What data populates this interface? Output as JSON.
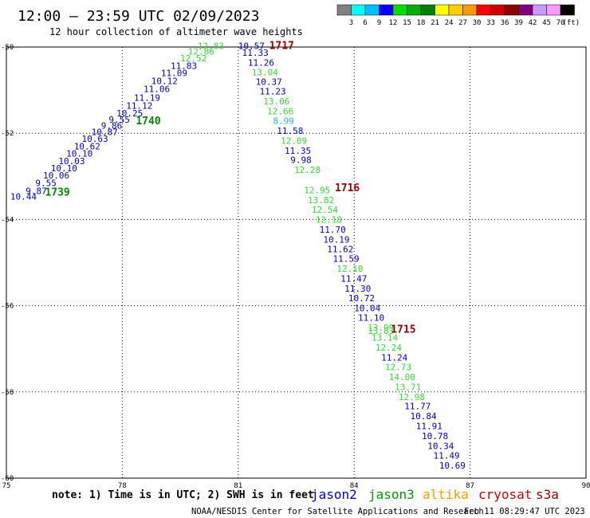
{
  "header": {
    "title": "12:00 — 23:59 UTC 02/09/2023",
    "subtitle": "12 hour collection of altimeter wave heights"
  },
  "colorbar": {
    "unit": "(ft)",
    "colors": [
      "#808080",
      "#00ffff",
      "#00bfff",
      "#0000ff",
      "#00e000",
      "#00b000",
      "#008000",
      "#ffff00",
      "#ffcc00",
      "#ff9900",
      "#ff0000",
      "#d00000",
      "#900000",
      "#800080",
      "#cc99ff",
      "#ff99ff",
      "#000000"
    ],
    "labels": [
      "3",
      "6",
      "9",
      "12",
      "15",
      "18",
      "21",
      "24",
      "27",
      "30",
      "33",
      "36",
      "39",
      "42",
      "45",
      "70"
    ]
  },
  "footer": {
    "note": "note: 1) Time is in UTC; 2) SWH is in feet",
    "credit": "NOAA/NESDIS Center for Satellite Applications and Research",
    "timestamp": "Feb 11 08:29:47 UTC 2023"
  },
  "satellites": [
    {
      "name": "jason2",
      "color": "#0000cc"
    },
    {
      "name": "jason3",
      "color": "#009900"
    },
    {
      "name": "altika",
      "color": "#ff9900"
    },
    {
      "name": "cryosat",
      "color": "#cc0000"
    },
    {
      "name": "s3a",
      "color": "#990000"
    }
  ],
  "chart_data": {
    "type": "scatter",
    "title": "12:00 — 23:59 UTC 02/09/2023",
    "subtitle": "12 hour collection of altimeter wave heights",
    "xlabel": "",
    "ylabel": "",
    "xlim": [
      75,
      90
    ],
    "ylim": [
      -60,
      -50
    ],
    "x_ticks": [
      "75",
      "78",
      "81",
      "84",
      "87",
      "90"
    ],
    "y_ticks": [
      "-50",
      "-52",
      "-54",
      "-56",
      "-58",
      "-60"
    ],
    "grid": true,
    "points": [
      {
        "x": 75.1,
        "y": -53.47,
        "label": "10.44",
        "color": "#0000cc"
      },
      {
        "x": 75.5,
        "y": -53.34,
        "label": "9.87",
        "color": "#0000cc"
      },
      {
        "x": 75.75,
        "y": -53.15,
        "label": "9.55",
        "color": "#0000cc"
      },
      {
        "x": 75.95,
        "y": -52.98,
        "label": "10.06",
        "color": "#0000cc"
      },
      {
        "x": 76.15,
        "y": -52.81,
        "label": "10.10",
        "color": "#0000cc"
      },
      {
        "x": 76.35,
        "y": -52.64,
        "label": "10.03",
        "color": "#0000cc"
      },
      {
        "x": 76.55,
        "y": -52.47,
        "label": "10.10",
        "color": "#0000cc"
      },
      {
        "x": 76.75,
        "y": -52.3,
        "label": "10.62",
        "color": "#0000cc"
      },
      {
        "x": 76.95,
        "y": -52.13,
        "label": "10.63",
        "color": "#0000cc"
      },
      {
        "x": 77.2,
        "y": -51.97,
        "label": "10.87",
        "color": "#0000cc"
      },
      {
        "x": 77.45,
        "y": -51.82,
        "label": "9.86",
        "color": "#0000cc"
      },
      {
        "x": 77.65,
        "y": -51.68,
        "label": "9.55",
        "color": "#0000cc"
      },
      {
        "x": 77.85,
        "y": -51.53,
        "label": "10.25",
        "color": "#0000cc"
      },
      {
        "x": 78.1,
        "y": -51.36,
        "label": "11.12",
        "color": "#0000cc"
      },
      {
        "x": 78.3,
        "y": -51.17,
        "label": "11.19",
        "color": "#0000cc"
      },
      {
        "x": 78.55,
        "y": -50.97,
        "label": "11.06",
        "color": "#0000cc"
      },
      {
        "x": 78.75,
        "y": -50.79,
        "label": "10.12",
        "color": "#0000cc"
      },
      {
        "x": 79.0,
        "y": -50.6,
        "label": "11.09",
        "color": "#0000cc"
      },
      {
        "x": 79.25,
        "y": -50.43,
        "label": "11.83",
        "color": "#0000cc"
      },
      {
        "x": 79.5,
        "y": -50.26,
        "label": "12.52",
        "color": "#33dd33"
      },
      {
        "x": 79.7,
        "y": -50.1,
        "label": "12.86",
        "color": "#33dd33"
      },
      {
        "x": 79.95,
        "y": -49.97,
        "label": "12.83",
        "color": "#33dd33"
      },
      {
        "x": 81.0,
        "y": -49.97,
        "label": "10.57",
        "color": "#0000cc"
      },
      {
        "x": 81.1,
        "y": -50.13,
        "label": "11.33",
        "color": "#0000cc"
      },
      {
        "x": 81.25,
        "y": -50.36,
        "label": "11.26",
        "color": "#0000cc"
      },
      {
        "x": 81.35,
        "y": -50.58,
        "label": "13.04",
        "color": "#33dd33"
      },
      {
        "x": 81.45,
        "y": -50.8,
        "label": "10.37",
        "color": "#0000cc"
      },
      {
        "x": 81.55,
        "y": -51.03,
        "label": "11.23",
        "color": "#0000cc"
      },
      {
        "x": 81.65,
        "y": -51.26,
        "label": "13.06",
        "color": "#33dd33"
      },
      {
        "x": 81.75,
        "y": -51.49,
        "label": "12.66",
        "color": "#33dd33"
      },
      {
        "x": 81.9,
        "y": -51.71,
        "label": "8.99",
        "color": "#33aaff"
      },
      {
        "x": 82.0,
        "y": -51.94,
        "label": "11.58",
        "color": "#0000cc"
      },
      {
        "x": 82.1,
        "y": -52.17,
        "label": "12.09",
        "color": "#33dd33"
      },
      {
        "x": 82.2,
        "y": -52.4,
        "label": "11.35",
        "color": "#0000cc"
      },
      {
        "x": 82.35,
        "y": -52.62,
        "label": "9.98",
        "color": "#0000cc"
      },
      {
        "x": 82.45,
        "y": -52.85,
        "label": "12.28",
        "color": "#33dd33"
      },
      {
        "x": 82.7,
        "y": -53.32,
        "label": "12.95",
        "color": "#33dd33"
      },
      {
        "x": 82.8,
        "y": -53.55,
        "label": "13.82",
        "color": "#33dd33"
      },
      {
        "x": 82.9,
        "y": -53.77,
        "label": "12.54",
        "color": "#33dd33"
      },
      {
        "x": 83.0,
        "y": -54.0,
        "label": "12.18",
        "color": "#33dd33"
      },
      {
        "x": 83.1,
        "y": -54.23,
        "label": "11.70",
        "color": "#0000cc"
      },
      {
        "x": 83.2,
        "y": -54.46,
        "label": "10.19",
        "color": "#0000cc"
      },
      {
        "x": 83.3,
        "y": -54.69,
        "label": "11.62",
        "color": "#0000cc"
      },
      {
        "x": 83.45,
        "y": -54.91,
        "label": "11.59",
        "color": "#0000cc"
      },
      {
        "x": 83.55,
        "y": -55.14,
        "label": "12.10",
        "color": "#33dd33"
      },
      {
        "x": 83.65,
        "y": -55.37,
        "label": "11.47",
        "color": "#0000cc"
      },
      {
        "x": 83.75,
        "y": -55.6,
        "label": "11.30",
        "color": "#0000cc"
      },
      {
        "x": 83.85,
        "y": -55.82,
        "label": "10.72",
        "color": "#0000cc"
      },
      {
        "x": 84.0,
        "y": -56.05,
        "label": "10.04",
        "color": "#0000cc"
      },
      {
        "x": 84.1,
        "y": -56.28,
        "label": "11.10",
        "color": "#0000cc"
      },
      {
        "x": 84.35,
        "y": -56.51,
        "label": "13.99",
        "color": "#33dd33"
      },
      {
        "x": 84.35,
        "y": -56.58,
        "label": "13.83",
        "color": "#33dd33"
      },
      {
        "x": 84.45,
        "y": -56.74,
        "label": "13.14",
        "color": "#33dd33"
      },
      {
        "x": 84.55,
        "y": -56.97,
        "label": "12.24",
        "color": "#33dd33"
      },
      {
        "x": 84.7,
        "y": -57.2,
        "label": "11.24",
        "color": "#0000cc"
      },
      {
        "x": 84.8,
        "y": -57.42,
        "label": "12.73",
        "color": "#33dd33"
      },
      {
        "x": 84.9,
        "y": -57.65,
        "label": "14.00",
        "color": "#33dd33"
      },
      {
        "x": 85.05,
        "y": -57.88,
        "label": "13.71",
        "color": "#33dd33"
      },
      {
        "x": 85.15,
        "y": -58.11,
        "label": "12.98",
        "color": "#33dd33"
      },
      {
        "x": 85.3,
        "y": -58.33,
        "label": "11.77",
        "color": "#0000cc"
      },
      {
        "x": 85.45,
        "y": -58.56,
        "label": "10.84",
        "color": "#0000cc"
      },
      {
        "x": 85.6,
        "y": -58.79,
        "label": "11.91",
        "color": "#0000cc"
      },
      {
        "x": 85.75,
        "y": -59.02,
        "label": "10.78",
        "color": "#0000cc"
      },
      {
        "x": 85.9,
        "y": -59.25,
        "label": "10.34",
        "color": "#0000cc"
      },
      {
        "x": 86.05,
        "y": -59.47,
        "label": "11.49",
        "color": "#0000cc"
      },
      {
        "x": 86.2,
        "y": -59.7,
        "label": "10.69",
        "color": "#0000cc"
      }
    ],
    "annotations": [
      {
        "x": 76.0,
        "y": -53.37,
        "text": "1739",
        "color": "#008800"
      },
      {
        "x": 78.35,
        "y": -51.72,
        "text": "1740",
        "color": "#008800"
      },
      {
        "x": 81.8,
        "y": -49.97,
        "text": "1717",
        "color": "#990000"
      },
      {
        "x": 83.5,
        "y": -53.27,
        "text": "1716",
        "color": "#990000"
      },
      {
        "x": 84.95,
        "y": -56.55,
        "text": "1715",
        "color": "#990000"
      }
    ]
  }
}
